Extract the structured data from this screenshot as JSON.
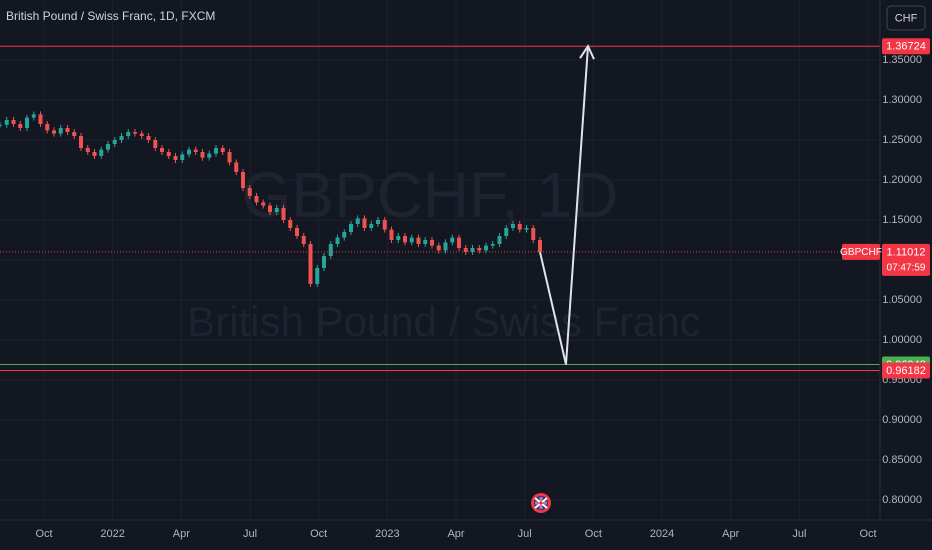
{
  "chart_data": {
    "type": "candlestick",
    "title": "British Pound / Swiss Franc, 1D, FXCM",
    "currency_button": "CHF",
    "watermark": {
      "symbol": "GBPCHF, 1D",
      "description": "British Pound / Swiss Franc"
    },
    "up_color": "#26a69a",
    "down_color": "#ef5350",
    "values": [
      1.269,
      1.275,
      1.27,
      1.265,
      1.278,
      1.282,
      1.27,
      1.262,
      1.258,
      1.265,
      1.26,
      1.255,
      1.24,
      1.235,
      1.23,
      1.238,
      1.245,
      1.25,
      1.255,
      1.26,
      1.258,
      1.255,
      1.25,
      1.24,
      1.235,
      1.23,
      1.225,
      1.232,
      1.238,
      1.235,
      1.228,
      1.233,
      1.24,
      1.235,
      1.222,
      1.21,
      1.19,
      1.18,
      1.172,
      1.168,
      1.16,
      1.165,
      1.15,
      1.14,
      1.13,
      1.12,
      1.07,
      1.09,
      1.105,
      1.12,
      1.128,
      1.135,
      1.145,
      1.152,
      1.14,
      1.145,
      1.15,
      1.138,
      1.125,
      1.13,
      1.122,
      1.128,
      1.12,
      1.125,
      1.118,
      1.112,
      1.122,
      1.128,
      1.115,
      1.11,
      1.115,
      1.112,
      1.118,
      1.12,
      1.13,
      1.14,
      1.145,
      1.138,
      1.14,
      1.125,
      1.11
    ],
    "ylim": [
      0.775,
      1.425
    ],
    "yticks": [
      {
        "value": 0.8,
        "label": "0.80000"
      },
      {
        "value": 0.85,
        "label": "0.85000"
      },
      {
        "value": 0.9,
        "label": "0.90000"
      },
      {
        "value": 0.95,
        "label": "0.95000"
      },
      {
        "value": 1.0,
        "label": "1.00000"
      },
      {
        "value": 1.05,
        "label": "1.05000"
      },
      {
        "value": 1.1,
        "label": "1.10000"
      },
      {
        "value": 1.15,
        "label": "1.15000"
      },
      {
        "value": 1.2,
        "label": "1.20000"
      },
      {
        "value": 1.25,
        "label": "1.25000"
      },
      {
        "value": 1.3,
        "label": "1.30000"
      },
      {
        "value": 1.35,
        "label": "1.35000"
      }
    ],
    "xticks": [
      "Oct",
      "2022",
      "Apr",
      "Jul",
      "Oct",
      "2023",
      "Apr",
      "Jul",
      "Oct",
      "2024",
      "Apr",
      "Jul",
      "Oct"
    ],
    "grid": true,
    "levels": [
      {
        "value": 1.36724,
        "color": "#f23645"
      },
      {
        "value": 0.96942,
        "color": "#4caf50"
      },
      {
        "value": 0.96182,
        "color": "#f23645"
      }
    ],
    "current_price": {
      "symbol": "GBPCHF",
      "value": 1.11012,
      "countdown": "07:47:59",
      "color": "#f23645"
    },
    "projection": {
      "values": [
        1.11,
        0.96942,
        1.36724
      ],
      "color": "#e0e3eb"
    }
  }
}
